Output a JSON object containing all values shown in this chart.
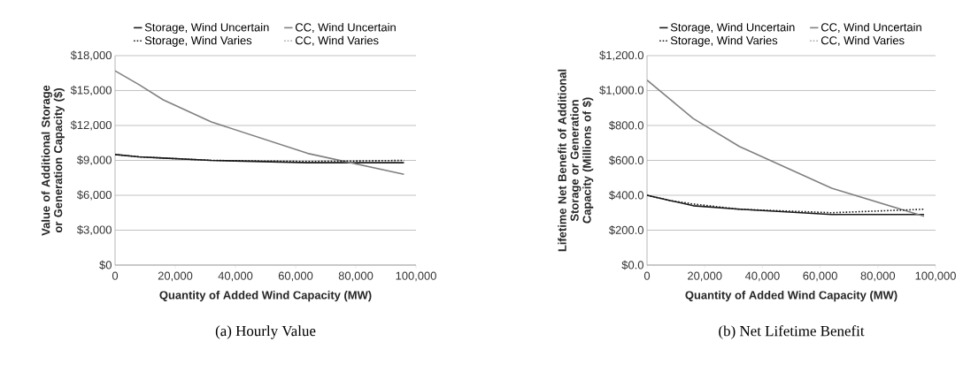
{
  "chart_data": [
    {
      "type": "line",
      "xlabel": "Quantity of Added Wind Capacity (MW)",
      "ylabel": "Value of Additional Storage or Generation Capacity ($)",
      "x": [
        0,
        8000,
        16000,
        32000,
        64000,
        96000
      ],
      "series": [
        {
          "name": "Storage, Wind Uncertain",
          "color": "#1a1a1a",
          "line_style": "solid",
          "values": [
            9500,
            9300,
            9200,
            9000,
            8800,
            8800
          ]
        },
        {
          "name": "CC, Wind Uncertain",
          "color": "#808080",
          "line_style": "solid",
          "values": [
            16700,
            15500,
            14200,
            12300,
            9600,
            7800
          ]
        },
        {
          "name": "Storage, Wind Varies",
          "color": "#1a1a1a",
          "line_style": "dotted",
          "values": [
            9500,
            9300,
            9200,
            9000,
            8900,
            9000
          ]
        },
        {
          "name": "CC, Wind Varies",
          "color": "#a6a6a6",
          "line_style": "dotted",
          "values": [
            null,
            null,
            null,
            null,
            null,
            null
          ]
        }
      ],
      "xlim": [
        0,
        100000
      ],
      "ylim": [
        0,
        18000
      ],
      "xticks": [
        0,
        {
          "value": 20000,
          "label": "20,000"
        },
        {
          "value": 40000,
          "label": "40,000"
        },
        {
          "value": 60000,
          "label": "60,000"
        },
        {
          "value": 80000,
          "label": "80,000"
        },
        {
          "value": 100000,
          "label": "100,000"
        }
      ],
      "yticks": [
        {
          "value": 0,
          "label": "$0"
        },
        {
          "value": 3000,
          "label": "$3,000"
        },
        {
          "value": 6000,
          "label": "$6,000"
        },
        {
          "value": 9000,
          "label": "$9,000"
        },
        {
          "value": 12000,
          "label": "$12,000"
        },
        {
          "value": 15000,
          "label": "$15,000"
        },
        {
          "value": 18000,
          "label": "$18,000"
        }
      ],
      "grid": "y",
      "legend": "top",
      "marker": "none",
      "annotations": [
        "(a) Hourly Value"
      ]
    },
    {
      "type": "line",
      "xlabel": "Quantity of Added Wind Capacity (MW)",
      "ylabel": "Lifetime Net Benefit of Additional Storage or Generation Capacity (Millions of $)",
      "x": [
        0,
        8000,
        16000,
        32000,
        64000,
        96000
      ],
      "series": [
        {
          "name": "Storage, Wind Uncertain",
          "color": "#1a1a1a",
          "line_style": "solid",
          "values": [
            400,
            370,
            340,
            320,
            290,
            290
          ]
        },
        {
          "name": "CC, Wind Uncertain",
          "color": "#808080",
          "line_style": "solid",
          "values": [
            1060,
            950,
            840,
            680,
            440,
            280
          ]
        },
        {
          "name": "Storage, Wind Varies",
          "color": "#1a1a1a",
          "line_style": "dotted",
          "values": [
            400,
            370,
            350,
            320,
            300,
            320
          ]
        },
        {
          "name": "CC, Wind Varies",
          "color": "#a6a6a6",
          "line_style": "dotted",
          "values": [
            null,
            null,
            null,
            null,
            null,
            null
          ]
        }
      ],
      "xlim": [
        0,
        100000
      ],
      "ylim": [
        0,
        1200
      ],
      "xticks": [
        0,
        {
          "value": 20000,
          "label": "20,000"
        },
        {
          "value": 40000,
          "label": "40,000"
        },
        {
          "value": 60000,
          "label": "60,000"
        },
        {
          "value": 80000,
          "label": "80,000"
        },
        {
          "value": 100000,
          "label": "100,000"
        }
      ],
      "yticks": [
        {
          "value": 0,
          "label": "$0.0"
        },
        {
          "value": 200,
          "label": "$200.0"
        },
        {
          "value": 400,
          "label": "$400.0"
        },
        {
          "value": 600,
          "label": "$600.0"
        },
        {
          "value": 800,
          "label": "$800.0"
        },
        {
          "value": 1000,
          "label": "$1,000.0"
        },
        {
          "value": 1200,
          "label": "$1,200.0"
        }
      ],
      "grid": "y",
      "legend": "top",
      "marker": "none",
      "annotations": [
        "(b) Net Lifetime Benefit"
      ]
    }
  ]
}
